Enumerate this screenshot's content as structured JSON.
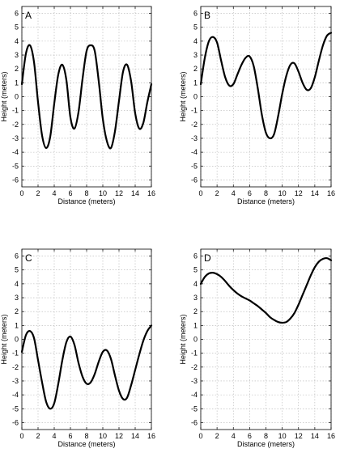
{
  "chart_data": [
    {
      "type": "line",
      "panel_label": "A",
      "xlabel": "Distance (meters)",
      "ylabel": "Height (meters)",
      "xlim": [
        0,
        16
      ],
      "ylim": [
        -6.5,
        6.5
      ],
      "xticks": [
        0,
        2,
        4,
        6,
        8,
        10,
        12,
        14,
        16
      ],
      "yticks": [
        -6,
        -5,
        -4,
        -3,
        -2,
        -1,
        0,
        1,
        2,
        3,
        4,
        5,
        6
      ],
      "grid": true,
      "series": [
        {
          "color": "#000000",
          "x": [
            0,
            0.5,
            1,
            1.5,
            2,
            2.5,
            3,
            3.5,
            4,
            4.5,
            5,
            5.5,
            6,
            6.5,
            7,
            7.5,
            8,
            8.5,
            9,
            9.5,
            10,
            10.5,
            11,
            11.5,
            12,
            12.5,
            13,
            13.5,
            14,
            14.5,
            15,
            15.5,
            16
          ],
          "y": [
            0.9,
            3.1,
            3.7,
            2.5,
            -0.4,
            -2.8,
            -3.7,
            -2.9,
            -0.5,
            1.6,
            2.3,
            1.2,
            -1.5,
            -2.3,
            -1.1,
            1.3,
            3.3,
            3.7,
            3.3,
            1.1,
            -1.6,
            -3.2,
            -3.7,
            -2.5,
            -0.3,
            1.8,
            2.3,
            1.1,
            -1.2,
            -2.3,
            -1.9,
            -0.4,
            0.9
          ]
        }
      ]
    },
    {
      "type": "line",
      "panel_label": "B",
      "xlabel": "Distance (meters)",
      "ylabel": "Height (meters)",
      "xlim": [
        0,
        16
      ],
      "ylim": [
        -6.5,
        6.5
      ],
      "xticks": [
        0,
        2,
        4,
        6,
        8,
        10,
        12,
        14,
        16
      ],
      "yticks": [
        -6,
        -5,
        -4,
        -3,
        -2,
        -1,
        0,
        1,
        2,
        3,
        4,
        5,
        6
      ],
      "grid": true,
      "series": [
        {
          "color": "#000000",
          "x": [
            0,
            0.5,
            1,
            1.5,
            2,
            2.5,
            3,
            3.5,
            4,
            4.5,
            5,
            5.5,
            6,
            6.5,
            7,
            7.5,
            8,
            8.5,
            9,
            9.5,
            10,
            10.5,
            11,
            11.5,
            12,
            12.5,
            13,
            13.5,
            14,
            14.5,
            15,
            15.5,
            16
          ],
          "y": [
            0.9,
            2.8,
            4.0,
            4.3,
            3.9,
            2.6,
            1.4,
            0.8,
            0.9,
            1.6,
            2.3,
            2.8,
            2.9,
            2.2,
            0.6,
            -1.3,
            -2.6,
            -3.0,
            -2.7,
            -1.4,
            0.2,
            1.5,
            2.3,
            2.4,
            1.8,
            1.0,
            0.5,
            0.6,
            1.4,
            2.6,
            3.7,
            4.4,
            4.6
          ]
        }
      ]
    },
    {
      "type": "line",
      "panel_label": "C",
      "xlabel": "Distance (meters)",
      "ylabel": "Height (meters)",
      "xlim": [
        0,
        16
      ],
      "ylim": [
        -6.5,
        6.5
      ],
      "xticks": [
        0,
        2,
        4,
        6,
        8,
        10,
        12,
        14,
        16
      ],
      "yticks": [
        -6,
        -5,
        -4,
        -3,
        -2,
        -1,
        0,
        1,
        2,
        3,
        4,
        5,
        6
      ],
      "grid": true,
      "series": [
        {
          "color": "#000000",
          "x": [
            0,
            0.5,
            1,
            1.5,
            2,
            2.5,
            3,
            3.5,
            4,
            4.5,
            5,
            5.5,
            6,
            6.5,
            7,
            7.5,
            8,
            8.5,
            9,
            9.5,
            10,
            10.5,
            11,
            11.5,
            12,
            12.5,
            13,
            13.5,
            14,
            14.5,
            15,
            15.5,
            16
          ],
          "y": [
            -0.9,
            0.3,
            0.6,
            0.1,
            -1.5,
            -3.1,
            -4.5,
            -5.0,
            -4.6,
            -3.2,
            -1.5,
            -0.2,
            0.2,
            -0.4,
            -1.7,
            -2.7,
            -3.2,
            -3.1,
            -2.5,
            -1.6,
            -0.9,
            -0.8,
            -1.4,
            -2.6,
            -3.7,
            -4.3,
            -4.2,
            -3.3,
            -2.2,
            -1.1,
            -0.1,
            0.6,
            1.0
          ]
        }
      ]
    },
    {
      "type": "line",
      "panel_label": "D",
      "xlabel": "Distance (meters)",
      "ylabel": "Height (meters)",
      "xlim": [
        0,
        16
      ],
      "ylim": [
        -6.5,
        6.5
      ],
      "xticks": [
        0,
        2,
        4,
        6,
        8,
        10,
        12,
        14,
        16
      ],
      "yticks": [
        -6,
        -5,
        -4,
        -3,
        -2,
        -1,
        0,
        1,
        2,
        3,
        4,
        5,
        6
      ],
      "grid": true,
      "series": [
        {
          "color": "#000000",
          "x": [
            0,
            0.5,
            1,
            1.5,
            2,
            2.5,
            3,
            3.5,
            4,
            4.5,
            5,
            5.5,
            6,
            6.5,
            7,
            7.5,
            8,
            8.5,
            9,
            9.5,
            10,
            10.5,
            11,
            11.5,
            12,
            12.5,
            13,
            13.5,
            14,
            14.5,
            15,
            15.5,
            16
          ],
          "y": [
            4.0,
            4.5,
            4.75,
            4.8,
            4.7,
            4.5,
            4.2,
            3.85,
            3.55,
            3.3,
            3.1,
            2.95,
            2.8,
            2.6,
            2.4,
            2.15,
            1.9,
            1.6,
            1.4,
            1.25,
            1.2,
            1.25,
            1.5,
            1.9,
            2.5,
            3.2,
            3.9,
            4.6,
            5.2,
            5.6,
            5.8,
            5.85,
            5.7
          ]
        }
      ]
    }
  ]
}
